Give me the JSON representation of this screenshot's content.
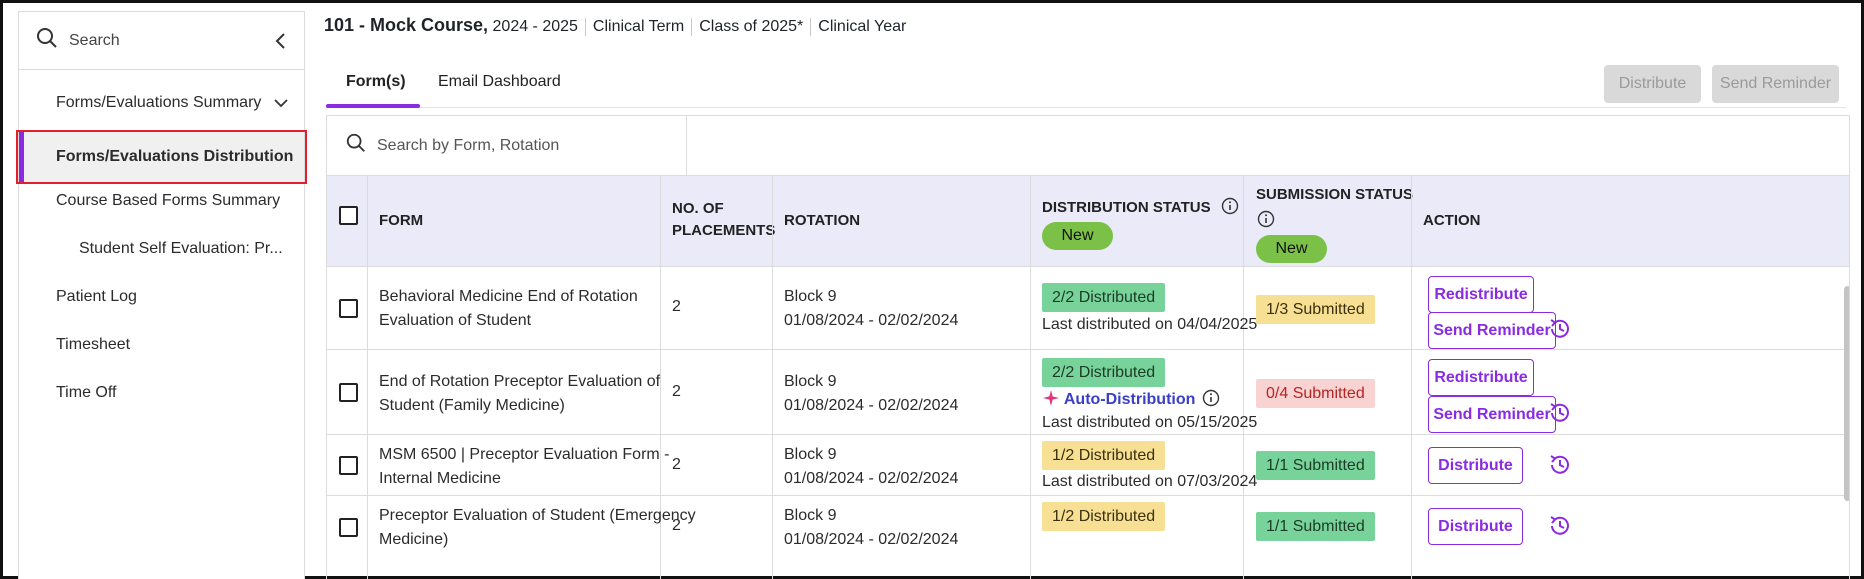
{
  "sidebar": {
    "search_label": "Search",
    "items": [
      {
        "label": "Forms/Evaluations Summary"
      },
      {
        "label": "Forms/Evaluations Distribution"
      },
      {
        "label": "Course Based Forms Summary"
      },
      {
        "label": "Student Self Evaluation: Pr..."
      },
      {
        "label": "Patient Log"
      },
      {
        "label": "Timesheet"
      },
      {
        "label": "Time Off"
      }
    ]
  },
  "header": {
    "course_title": "101 - Mock Course,",
    "year": "2024 - 2025",
    "term": "Clinical Term",
    "class": "Class of 2025*",
    "clinical_year": "Clinical Year"
  },
  "tabs": [
    {
      "label": "Form(s)"
    },
    {
      "label": "Email Dashboard"
    }
  ],
  "toolbar": {
    "distribute_label": "Distribute",
    "send_reminder_label": "Send Reminder"
  },
  "table_search": {
    "placeholder": "Search by Form, Rotation"
  },
  "columns": {
    "form": "FORM",
    "placements_1": "NO. OF",
    "placements_2": "PLACEMENTS",
    "rotation": "ROTATION",
    "distribution_status": "DISTRIBUTION STATUS",
    "submission_status": "SUBMISSION STATUS",
    "action": "ACTION",
    "new_label": "New"
  },
  "rows": [
    {
      "form_1": "Behavioral Medicine End of Rotation",
      "form_2": "Evaluation of Student",
      "placements": "2",
      "rotation_block": "Block 9",
      "rotation_dates": "01/08/2024 - 02/02/2024",
      "distribution_badge": "2/2 Distributed",
      "auto_distribution": "",
      "last_distributed": "Last distributed on 04/04/2025",
      "submission_badge": "1/3 Submitted",
      "action_1": "Redistribute",
      "action_2": "Send Reminder"
    },
    {
      "form_1": "End of Rotation Preceptor Evaluation of",
      "form_2": "Student (Family Medicine)",
      "placements": "2",
      "rotation_block": "Block 9",
      "rotation_dates": "01/08/2024 - 02/02/2024",
      "distribution_badge": "2/2 Distributed",
      "auto_distribution": "Auto-Distribution",
      "last_distributed": "Last distributed on 05/15/2025",
      "submission_badge": "0/4 Submitted",
      "action_1": "Redistribute",
      "action_2": "Send Reminder"
    },
    {
      "form_1": "MSM 6500 | Preceptor Evaluation Form -",
      "form_2": "Internal Medicine",
      "placements": "2",
      "rotation_block": "Block 9",
      "rotation_dates": "01/08/2024 - 02/02/2024",
      "distribution_badge": "1/2 Distributed",
      "auto_distribution": "",
      "last_distributed": "Last distributed on 07/03/2024",
      "submission_badge": "1/1 Submitted",
      "action_1": "Distribute",
      "action_2": ""
    },
    {
      "form_1": "Preceptor Evaluation of Student (Emergency",
      "form_2": "Medicine)",
      "placements": "2",
      "rotation_block": "Block 9",
      "rotation_dates": "01/08/2024 - 02/02/2024",
      "distribution_badge": "1/2 Distributed",
      "auto_distribution": "",
      "last_distributed": "",
      "submission_badge": "1/1 Submitted",
      "action_1": "Distribute",
      "action_2": ""
    }
  ],
  "colors": {
    "accent": "#8a2be2",
    "selection_outline": "#e0202a",
    "badge_green": "#78d39a",
    "badge_yellow": "#f7df93",
    "badge_pink": "#f9d2d2",
    "pill_new": "#7bc147",
    "auto_distribution_text": "#3a3fc8"
  },
  "icons": [
    "search-icon",
    "chevron-left-icon",
    "chevron-down-icon",
    "info-icon",
    "sparkle-icon",
    "history-icon"
  ]
}
